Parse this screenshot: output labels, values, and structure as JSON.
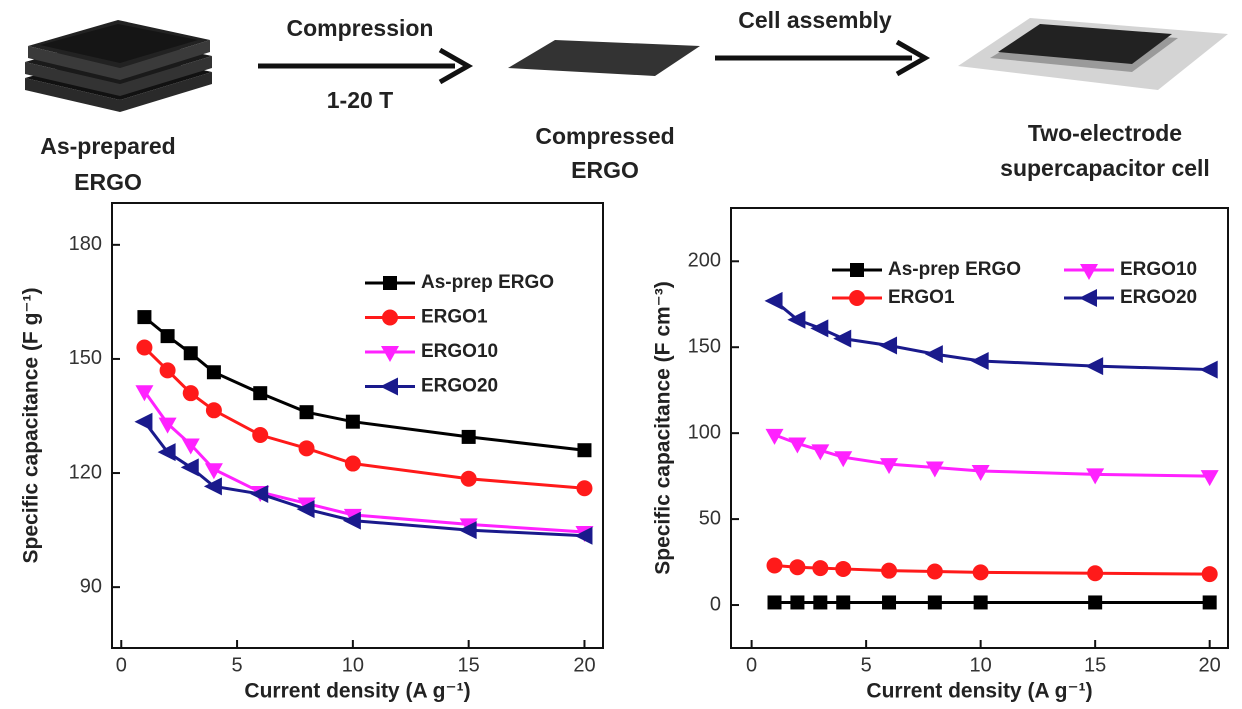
{
  "diagram": {
    "stages": [
      {
        "lines": [
          "As-prepared",
          "ERGO"
        ]
      },
      {
        "lines": [
          "Compressed",
          "ERGO"
        ]
      },
      {
        "lines": [
          "Two-electrode",
          "supercapacitor cell"
        ]
      }
    ],
    "arrows": [
      {
        "label": "Compression",
        "sublabel": "1-20 T"
      },
      {
        "label": "Cell assembly"
      }
    ]
  },
  "chart_data": [
    {
      "type": "line",
      "x_label": "Current density (A g⁻¹)",
      "y_label": "Specific capacitance (F g⁻¹)",
      "x": [
        1,
        2,
        3,
        4,
        6,
        8,
        10,
        15,
        20
      ],
      "xlim": [
        -0.4,
        20.8
      ],
      "xticks": [
        0,
        5,
        10,
        15,
        20
      ],
      "ylim": [
        74,
        191
      ],
      "yticks": [
        90,
        120,
        150,
        180
      ],
      "legend": "upper right",
      "legend_columns": 1,
      "series": [
        {
          "name": "As-prep ERGO",
          "color": "#000000",
          "marker": "square",
          "values": [
            161,
            156,
            151.5,
            146.5,
            141,
            136,
            133.5,
            129.5,
            126
          ]
        },
        {
          "name": "ERGO1",
          "color": "#ff1a1a",
          "marker": "circle",
          "values": [
            153,
            147,
            141,
            136.5,
            130,
            126.5,
            122.5,
            118.5,
            116
          ]
        },
        {
          "name": "ERGO10",
          "color": "#ff22ff",
          "marker": "triangle-down",
          "values": [
            141.5,
            133,
            127.5,
            121,
            115,
            112,
            109,
            106.5,
            104.5
          ]
        },
        {
          "name": "ERGO20",
          "color": "#1a1a8c",
          "marker": "triangle-left",
          "values": [
            133.5,
            125.5,
            121.5,
            116.5,
            114.5,
            110.5,
            107.5,
            105,
            103.5
          ]
        }
      ]
    },
    {
      "type": "line",
      "x_label": "Current density (A g⁻¹)",
      "y_label": "Specific capacitance (F cm⁻³)",
      "x": [
        1,
        2,
        3,
        4,
        6,
        8,
        10,
        15,
        20
      ],
      "xlim": [
        -0.9,
        20.8
      ],
      "xticks": [
        0,
        5,
        10,
        15,
        20
      ],
      "ylim": [
        -25,
        231
      ],
      "yticks": [
        0,
        50,
        100,
        150,
        200
      ],
      "legend": "upper right",
      "legend_columns": 2,
      "series": [
        {
          "name": "As-prep ERGO",
          "color": "#000000",
          "marker": "square",
          "values": [
            1.5,
            1.5,
            1.5,
            1.5,
            1.5,
            1.5,
            1.5,
            1.5,
            1.5
          ]
        },
        {
          "name": "ERGO1",
          "color": "#ff1a1a",
          "marker": "circle",
          "values": [
            23,
            22,
            21.5,
            21,
            20,
            19.5,
            19,
            18.5,
            18
          ]
        },
        {
          "name": "ERGO10",
          "color": "#ff22ff",
          "marker": "triangle-down",
          "values": [
            99,
            94,
            90,
            86,
            82,
            80,
            78,
            76,
            75
          ]
        },
        {
          "name": "ERGO20",
          "color": "#1a1a8c",
          "marker": "triangle-left",
          "values": [
            177,
            166,
            161,
            155,
            151,
            146,
            142,
            139,
            137
          ]
        }
      ]
    }
  ]
}
